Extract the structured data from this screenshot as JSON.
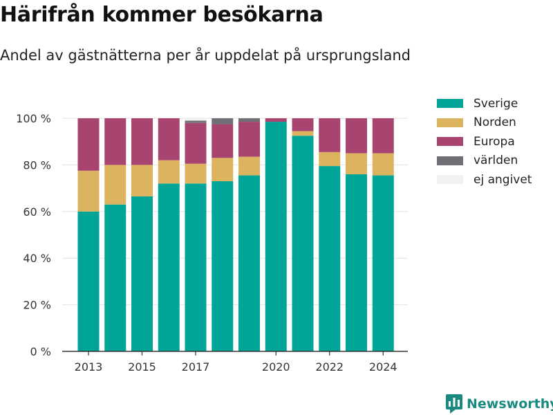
{
  "title": "Härifrån kommer besökarna",
  "subtitle": "Andel av gästnätterna per år uppdelat på ursprungsland",
  "brand": "Newsworthy",
  "colors": {
    "sverige": "#00a598",
    "norden": "#dcb35f",
    "europa": "#a84470",
    "varlden": "#6e7075",
    "ej_angivet": "#f1f1f1",
    "brand": "#1a8a80"
  },
  "chart_data": {
    "type": "bar",
    "stacked": true,
    "title": "",
    "xlabel": "",
    "ylabel": "",
    "ylim": [
      0,
      100
    ],
    "yticks": [
      0,
      20,
      40,
      60,
      80,
      100
    ],
    "ytick_labels": [
      "0 %",
      "20 %",
      "40 %",
      "60 %",
      "80 %",
      "100 %"
    ],
    "categories": [
      2013,
      2014,
      2015,
      2016,
      2017,
      2018,
      2019,
      2020,
      2021,
      2022,
      2023,
      2024
    ],
    "xtick_labels": [
      {
        "x": 2013,
        "label": "2013"
      },
      {
        "x": 2015,
        "label": "2015"
      },
      {
        "x": 2017,
        "label": "2017"
      },
      {
        "x": 2020,
        "label": "2020"
      },
      {
        "x": 2022,
        "label": "2022"
      },
      {
        "x": 2024,
        "label": "2024"
      }
    ],
    "grid": true,
    "legend_position": "right",
    "series": [
      {
        "name": "Sverige",
        "color": "#00a598",
        "values": [
          60,
          63,
          66.5,
          72,
          72,
          73,
          75.5,
          98.5,
          92.5,
          79.5,
          76,
          75.5
        ]
      },
      {
        "name": "Norden",
        "color": "#dcb35f",
        "values": [
          17.5,
          17,
          13.5,
          10,
          8.5,
          10,
          8,
          0,
          2,
          6,
          9,
          9.5
        ]
      },
      {
        "name": "Europa",
        "color": "#a84470",
        "values": [
          22.5,
          20,
          20,
          18,
          17.5,
          14.5,
          15,
          1.5,
          5.5,
          14.5,
          15,
          15
        ]
      },
      {
        "name": "världen",
        "color": "#6e7075",
        "values": [
          0,
          0,
          0,
          0,
          1,
          2.5,
          1.5,
          0,
          0,
          0,
          0,
          0
        ]
      },
      {
        "name": "ej angivet",
        "color": "#f1f1f1",
        "values": [
          0,
          0,
          0,
          0,
          1,
          0,
          0,
          0,
          0,
          0,
          0,
          0
        ]
      }
    ]
  }
}
